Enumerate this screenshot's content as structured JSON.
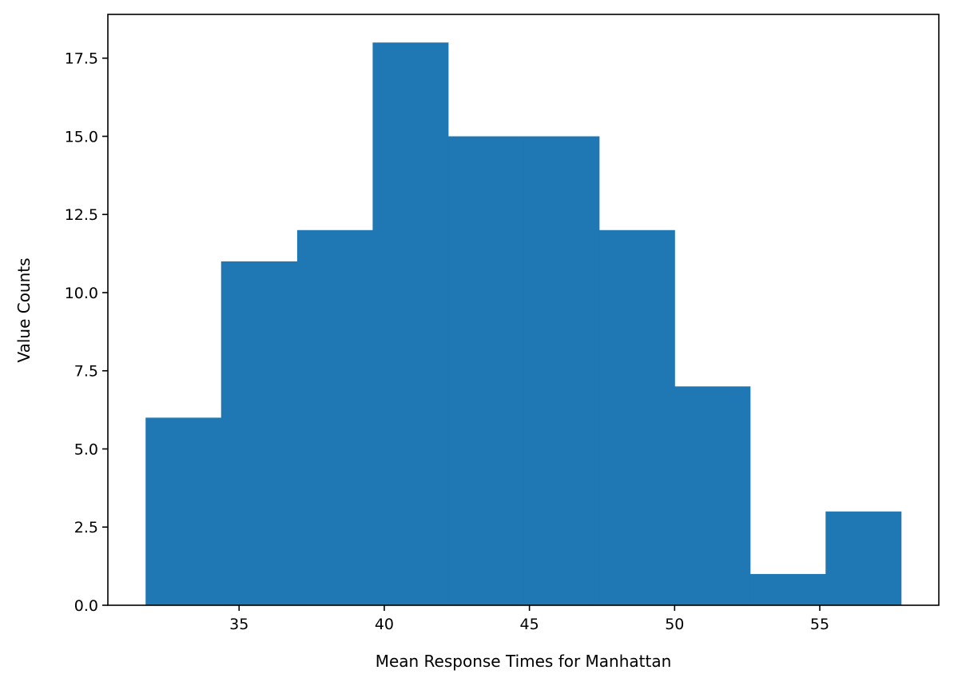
{
  "chart_data": {
    "type": "histogram",
    "title": "",
    "xlabel": "Mean Response Times for Manhattan",
    "ylabel": "Value Counts",
    "bin_edges": [
      31.78,
      34.38,
      37.0,
      39.6,
      42.2,
      44.8,
      47.4,
      50.0,
      52.6,
      55.2,
      57.8
    ],
    "counts": [
      6,
      11,
      12,
      18,
      15,
      15,
      12,
      7,
      1,
      3
    ],
    "xlim": [
      30.48,
      59.1
    ],
    "ylim": [
      0,
      18.9
    ],
    "xticks": [
      35,
      40,
      45,
      50,
      55
    ],
    "xtick_labels": [
      "35",
      "40",
      "45",
      "50",
      "55"
    ],
    "yticks": [
      0,
      2.5,
      5,
      7.5,
      10,
      12.5,
      15,
      17.5
    ],
    "ytick_labels": [
      "0.0",
      "2.5",
      "5.0",
      "7.5",
      "10.0",
      "12.5",
      "15.0",
      "17.5"
    ],
    "bar_color": "#1f77b4",
    "grid": false,
    "legend": false
  }
}
